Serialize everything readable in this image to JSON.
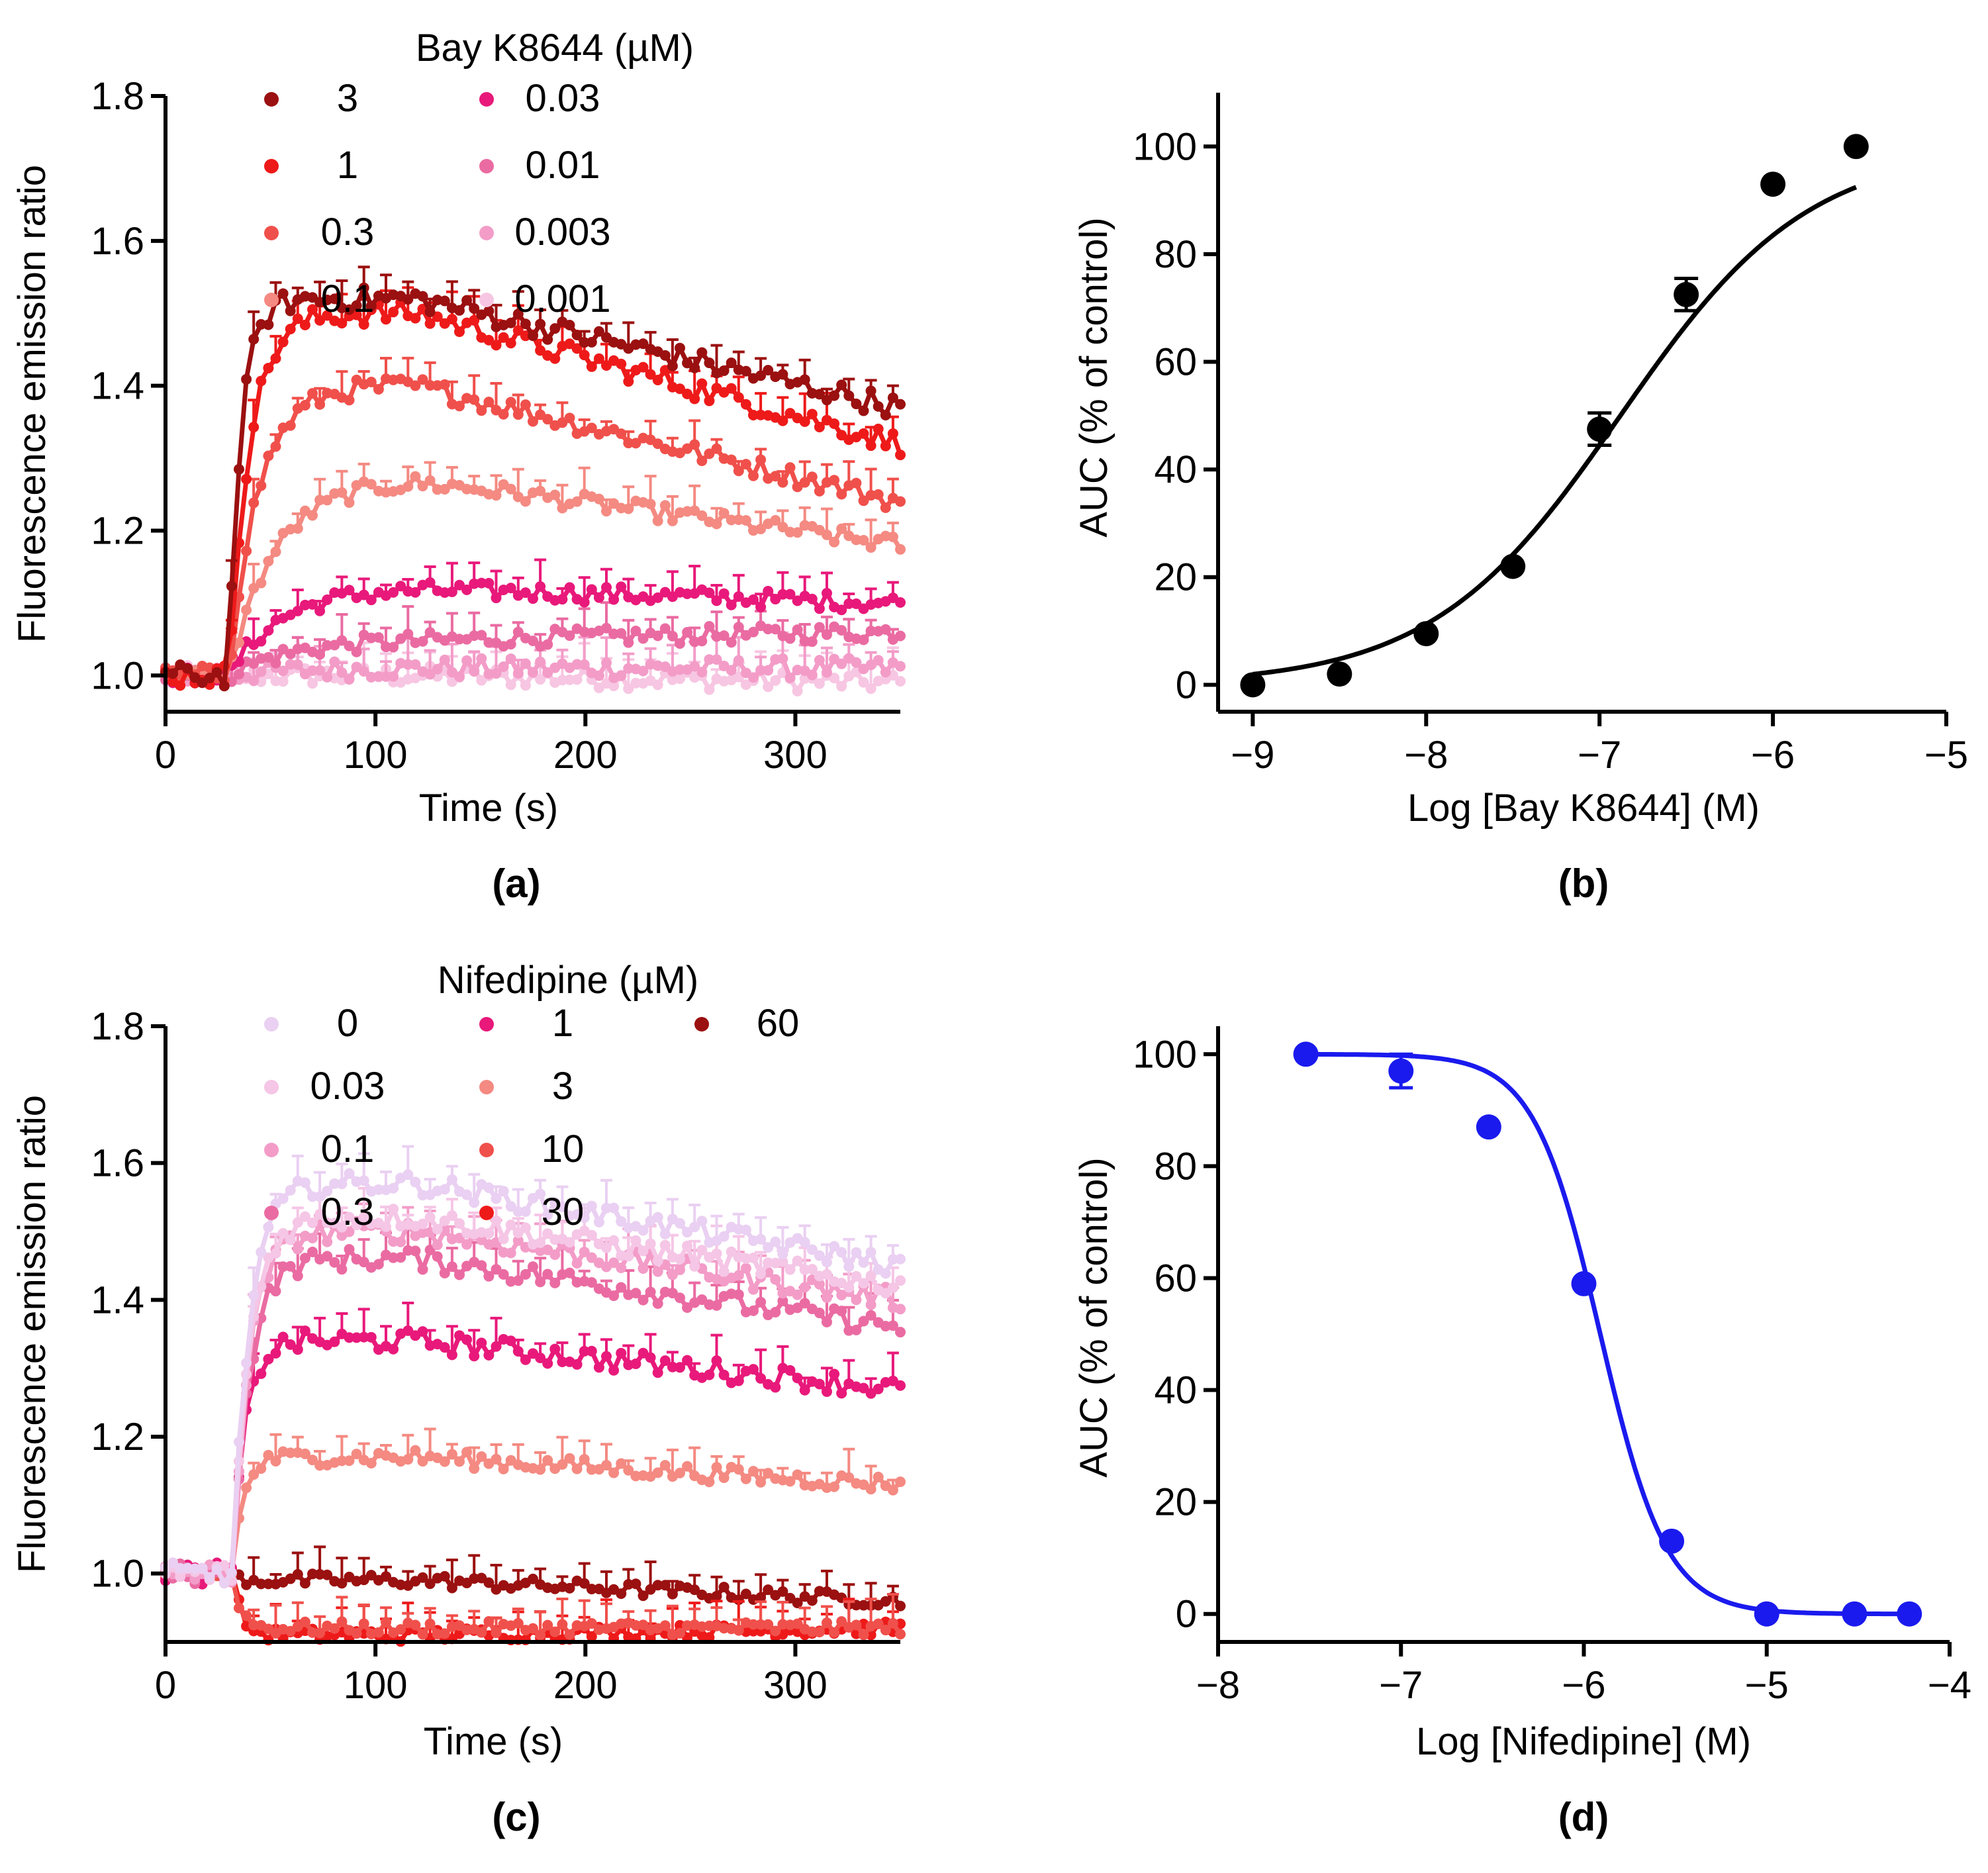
{
  "chart_data": [
    {
      "id": "a",
      "type": "line",
      "panel_label": "(a)",
      "xlabel": "Time (s)",
      "ylabel": "Fluorescence emission ratio",
      "xlim": [
        0,
        350
      ],
      "ylim": [
        0.95,
        1.8
      ],
      "xticks": [
        "0",
        "100",
        "200",
        "300"
      ],
      "yticks": [
        "1.0",
        "1.2",
        "1.4",
        "1.6",
        "1.8"
      ],
      "legend_title": "Bay K8644 (µM)",
      "stimulus_time": 30,
      "series": [
        {
          "name": "3",
          "color": "#9b1010",
          "baseline": 1.0,
          "peak": 1.52,
          "end": 1.37,
          "tau_rise": 6,
          "noise": 0.016
        },
        {
          "name": "1",
          "color": "#ee1a1a",
          "baseline": 1.0,
          "peak": 1.5,
          "end": 1.32,
          "tau_rise": 10,
          "noise": 0.016
        },
        {
          "name": "0.3",
          "color": "#f0504b",
          "baseline": 1.0,
          "peak": 1.4,
          "end": 1.24,
          "tau_rise": 14,
          "noise": 0.014
        },
        {
          "name": "0.1",
          "color": "#f48a82",
          "baseline": 1.0,
          "peak": 1.27,
          "end": 1.18,
          "tau_rise": 22,
          "noise": 0.012
        },
        {
          "name": "0.03",
          "color": "#e8197a",
          "baseline": 1.0,
          "peak": 1.12,
          "end": 1.1,
          "tau_rise": 24,
          "noise": 0.012
        },
        {
          "name": "0.01",
          "color": "#ea6ba2",
          "baseline": 1.0,
          "peak": 1.05,
          "end": 1.06,
          "tau_rise": 30,
          "noise": 0.012
        },
        {
          "name": "0.003",
          "color": "#f39cc8",
          "baseline": 1.0,
          "peak": 1.01,
          "end": 1.01,
          "tau_rise": 30,
          "noise": 0.014
        },
        {
          "name": "0.001",
          "color": "#f7c6e2",
          "baseline": 1.0,
          "peak": 1.0,
          "end": 0.99,
          "tau_rise": 30,
          "noise": 0.014
        }
      ]
    },
    {
      "id": "b",
      "type": "scatter",
      "panel_label": "(b)",
      "xlabel": "Log [Bay K8644] (M)",
      "ylabel": "AUC (% of control)",
      "xlim": [
        -9.2,
        -5
      ],
      "ylim": [
        -5,
        110
      ],
      "xticks": [
        "−9",
        "−8",
        "−7",
        "−6",
        "−5"
      ],
      "yticks": [
        "0",
        "20",
        "40",
        "60",
        "80",
        "100"
      ],
      "color": "#000000",
      "x": [
        -9,
        -8.5,
        -8,
        -7.5,
        -7,
        -6.5,
        -6,
        -5.52
      ],
      "y": [
        0,
        2,
        9.5,
        22,
        47.5,
        72.5,
        93,
        100
      ],
      "err": [
        0,
        0,
        0,
        0,
        3,
        3,
        0,
        0
      ],
      "fit": {
        "bottom": 0,
        "top": 100,
        "logEC50": -6.88,
        "hill": 0.8
      }
    },
    {
      "id": "c",
      "type": "line",
      "panel_label": "(c)",
      "xlabel": "Time (s)",
      "ylabel": "Fluorescence emission ratio",
      "xlim": [
        0,
        350
      ],
      "ylim": [
        0.9,
        1.8
      ],
      "xticks": [
        "0",
        "100",
        "200",
        "300"
      ],
      "yticks": [
        "1.0",
        "1.2",
        "1.4",
        "1.6",
        "1.8"
      ],
      "legend_title": "Nifedipine (µM)",
      "stimulus_time": 32,
      "series": [
        {
          "name": "0",
          "color": "#ead0f2",
          "baseline": 1.0,
          "peak": 1.57,
          "end": 1.45,
          "tau_rise": 8,
          "noise": 0.016
        },
        {
          "name": "0.03",
          "color": "#f5c6e6",
          "baseline": 1.0,
          "peak": 1.52,
          "end": 1.42,
          "tau_rise": 8,
          "noise": 0.016
        },
        {
          "name": "0.1",
          "color": "#f39cc8",
          "baseline": 1.0,
          "peak": 1.5,
          "end": 1.4,
          "tau_rise": 8,
          "noise": 0.016
        },
        {
          "name": "0.3",
          "color": "#ea6ba2",
          "baseline": 1.0,
          "peak": 1.46,
          "end": 1.36,
          "tau_rise": 8,
          "noise": 0.016
        },
        {
          "name": "1",
          "color": "#e8197a",
          "baseline": 1.0,
          "peak": 1.34,
          "end": 1.27,
          "tau_rise": 6,
          "noise": 0.016
        },
        {
          "name": "3",
          "color": "#f48a82",
          "baseline": 1.0,
          "peak": 1.17,
          "end": 1.13,
          "tau_rise": 5,
          "noise": 0.012
        },
        {
          "name": "10",
          "color": "#f0504b",
          "baseline": 1.0,
          "peak": 0.92,
          "end": 0.92,
          "tau_rise": 4,
          "noise": 0.01
        },
        {
          "name": "30",
          "color": "#ee1a1a",
          "baseline": 1.0,
          "peak": 0.91,
          "end": 0.92,
          "tau_rise": 4,
          "noise": 0.01
        },
        {
          "name": "60",
          "color": "#9b1010",
          "baseline": 1.0,
          "peak": 0.99,
          "end": 0.96,
          "tau_rise": 4,
          "noise": 0.01
        }
      ]
    },
    {
      "id": "d",
      "type": "scatter",
      "panel_label": "(d)",
      "xlabel": "Log [Nifedipine] (M)",
      "ylabel": "AUC (% of control)",
      "xlim": [
        -8,
        -4
      ],
      "ylim": [
        -5,
        105
      ],
      "xticks": [
        "−8",
        "−7",
        "−6",
        "−5",
        "−4"
      ],
      "yticks": [
        "0",
        "20",
        "40",
        "60",
        "80",
        "100"
      ],
      "color": "#1a1aee",
      "x": [
        -7.52,
        -7,
        -6.52,
        -6,
        -5.52,
        -5,
        -4.52,
        -4.22
      ],
      "y": [
        100,
        97,
        87,
        59,
        13,
        0,
        0,
        0
      ],
      "err": [
        0,
        3,
        0,
        0,
        0,
        0,
        0,
        0
      ],
      "fit": {
        "bottom": 0,
        "top": 100,
        "logEC50": -5.91,
        "hill": -2.4
      }
    }
  ]
}
